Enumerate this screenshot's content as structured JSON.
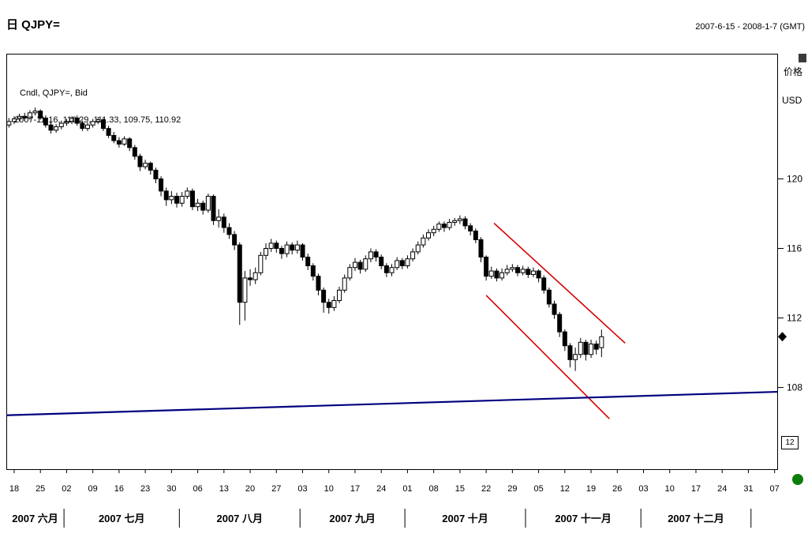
{
  "header": {
    "title": "日 QJPY=",
    "range": "2007-6-15 - 2008-1-7 (GMT)"
  },
  "legend": {
    "line1": "Cndl, QJPY=, Bid",
    "line2": "2007-11-16, 110.29, 111.33, 109.75, 110.92"
  },
  "side": {
    "axis_title": "价格",
    "currency": "USD",
    "interval_box": "12"
  },
  "chart_data": {
    "type": "candlestick",
    "instrument": "QJPY=",
    "period": "Daily",
    "quote_side": "Bid",
    "date_range": "2007-6-15 - 2008-1-7 (GMT)",
    "grid": false,
    "legend_position": "top-left-overlay",
    "y_axis": {
      "title": "价格",
      "currency": "USD",
      "min": 103.3,
      "max": 127.2,
      "ticks": [
        120,
        116,
        112,
        108
      ],
      "side": "right"
    },
    "x_axis": {
      "total_slots": 147,
      "start_date": "2007-06-15",
      "tick_labels": [
        "18",
        "25",
        "02",
        "09",
        "16",
        "23",
        "30",
        "06",
        "13",
        "20",
        "27",
        "03",
        "10",
        "17",
        "24",
        "01",
        "08",
        "15",
        "22",
        "29",
        "05",
        "12",
        "19",
        "26",
        "03",
        "10",
        "17",
        "24",
        "31",
        "07"
      ],
      "tick_slots": [
        1,
        6,
        11,
        16,
        21,
        26,
        31,
        36,
        41,
        46,
        51,
        56,
        61,
        66,
        71,
        76,
        81,
        86,
        91,
        96,
        101,
        106,
        111,
        116,
        121,
        126,
        131,
        136,
        141,
        146
      ]
    },
    "months": [
      {
        "label": "2007 六月",
        "b0": 0,
        "b1": 11
      },
      {
        "label": "2007 七月",
        "b0": 11,
        "b1": 33
      },
      {
        "label": "2007 八月",
        "b0": 33,
        "b1": 56
      },
      {
        "label": "2007 九月",
        "b0": 56,
        "b1": 76
      },
      {
        "label": "2007 十月",
        "b0": 76,
        "b1": 99
      },
      {
        "label": "2007 十一月",
        "b0": 99,
        "b1": 121
      },
      {
        "label": "2007 十二月",
        "b0": 121,
        "b1": 142
      }
    ],
    "candles": [
      [
        123.1,
        123.5,
        122.95,
        123.3
      ],
      [
        123.3,
        123.6,
        123.15,
        123.45
      ],
      [
        123.45,
        123.75,
        123.3,
        123.6
      ],
      [
        123.6,
        123.8,
        123.35,
        123.5
      ],
      [
        123.5,
        123.95,
        123.4,
        123.8
      ],
      [
        123.8,
        124.1,
        123.65,
        123.9
      ],
      [
        123.9,
        124.0,
        123.4,
        123.5
      ],
      [
        123.5,
        123.65,
        122.95,
        123.1
      ],
      [
        123.1,
        123.25,
        122.6,
        122.8
      ],
      [
        122.8,
        123.15,
        122.65,
        123.0
      ],
      [
        123.0,
        123.35,
        122.85,
        123.2
      ],
      [
        123.2,
        123.45,
        123.05,
        123.3
      ],
      [
        123.3,
        123.6,
        123.15,
        123.5
      ],
      [
        123.5,
        123.65,
        123.05,
        123.2
      ],
      [
        123.2,
        123.35,
        122.75,
        122.9
      ],
      [
        122.9,
        123.25,
        122.75,
        123.1
      ],
      [
        123.1,
        123.45,
        122.95,
        123.3
      ],
      [
        123.3,
        123.55,
        123.15,
        123.4
      ],
      [
        123.4,
        123.5,
        122.75,
        122.9
      ],
      [
        122.9,
        123.05,
        122.35,
        122.5
      ],
      [
        122.5,
        122.7,
        122.05,
        122.2
      ],
      [
        122.2,
        122.4,
        121.8,
        122.0
      ],
      [
        122.0,
        122.45,
        121.9,
        122.3
      ],
      [
        122.3,
        122.4,
        121.6,
        121.8
      ],
      [
        121.8,
        121.95,
        121.1,
        121.3
      ],
      [
        121.3,
        121.45,
        120.45,
        120.7
      ],
      [
        120.7,
        121.1,
        120.55,
        120.9
      ],
      [
        120.9,
        121.0,
        120.25,
        120.5
      ],
      [
        120.5,
        120.65,
        119.75,
        120.0
      ],
      [
        120.0,
        120.15,
        119.0,
        119.3
      ],
      [
        119.3,
        119.5,
        118.45,
        118.8
      ],
      [
        118.8,
        119.3,
        118.55,
        119.0
      ],
      [
        119.0,
        119.2,
        118.35,
        118.6
      ],
      [
        118.6,
        119.25,
        118.4,
        119.0
      ],
      [
        119.0,
        119.5,
        118.85,
        119.3
      ],
      [
        119.3,
        119.45,
        118.2,
        118.4
      ],
      [
        118.4,
        118.85,
        118.15,
        118.6
      ],
      [
        118.6,
        118.75,
        117.95,
        118.2
      ],
      [
        118.2,
        119.15,
        118.05,
        119.0
      ],
      [
        119.0,
        119.1,
        117.35,
        117.6
      ],
      [
        117.6,
        118.25,
        117.2,
        117.8
      ],
      [
        117.8,
        118.0,
        116.9,
        117.2
      ],
      [
        117.2,
        117.45,
        116.55,
        116.8
      ],
      [
        116.8,
        117.0,
        115.9,
        116.2
      ],
      [
        116.2,
        116.35,
        111.6,
        112.9
      ],
      [
        112.9,
        114.7,
        111.85,
        114.3
      ],
      [
        114.3,
        114.8,
        113.85,
        114.2
      ],
      [
        114.2,
        114.9,
        113.95,
        114.6
      ],
      [
        114.6,
        115.8,
        114.45,
        115.6
      ],
      [
        115.6,
        116.3,
        115.35,
        116.0
      ],
      [
        116.0,
        116.55,
        115.8,
        116.3
      ],
      [
        116.3,
        116.45,
        115.75,
        116.0
      ],
      [
        116.0,
        116.15,
        115.4,
        115.7
      ],
      [
        115.7,
        116.4,
        115.5,
        116.2
      ],
      [
        116.2,
        116.35,
        115.65,
        115.9
      ],
      [
        115.9,
        116.45,
        115.7,
        116.2
      ],
      [
        116.2,
        116.3,
        115.3,
        115.5
      ],
      [
        115.5,
        115.7,
        114.75,
        115.0
      ],
      [
        115.0,
        115.15,
        114.15,
        114.4
      ],
      [
        114.4,
        114.55,
        113.3,
        113.6
      ],
      [
        113.6,
        113.75,
        112.3,
        112.9
      ],
      [
        112.9,
        113.1,
        112.25,
        112.6
      ],
      [
        112.6,
        113.25,
        112.4,
        113.0
      ],
      [
        113.0,
        113.8,
        112.85,
        113.6
      ],
      [
        113.6,
        114.5,
        113.45,
        114.3
      ],
      [
        114.3,
        115.1,
        114.15,
        114.9
      ],
      [
        114.9,
        115.45,
        114.7,
        115.2
      ],
      [
        115.2,
        115.35,
        114.55,
        114.8
      ],
      [
        114.8,
        115.6,
        114.65,
        115.4
      ],
      [
        115.4,
        116.0,
        115.2,
        115.8
      ],
      [
        115.8,
        115.95,
        115.25,
        115.5
      ],
      [
        115.5,
        115.65,
        114.8,
        115.0
      ],
      [
        115.0,
        115.15,
        114.35,
        114.6
      ],
      [
        114.6,
        115.1,
        114.4,
        114.9
      ],
      [
        114.9,
        115.5,
        114.75,
        115.3
      ],
      [
        115.3,
        115.45,
        114.8,
        115.0
      ],
      [
        115.0,
        115.6,
        114.85,
        115.4
      ],
      [
        115.4,
        116.0,
        115.25,
        115.8
      ],
      [
        115.8,
        116.4,
        115.65,
        116.2
      ],
      [
        116.2,
        116.8,
        116.05,
        116.6
      ],
      [
        116.6,
        117.1,
        116.45,
        116.9
      ],
      [
        116.9,
        117.3,
        116.7,
        117.1
      ],
      [
        117.1,
        117.55,
        116.95,
        117.4
      ],
      [
        117.4,
        117.55,
        116.95,
        117.2
      ],
      [
        117.2,
        117.7,
        117.05,
        117.5
      ],
      [
        117.5,
        117.75,
        117.3,
        117.6
      ],
      [
        117.6,
        117.9,
        117.4,
        117.7
      ],
      [
        117.7,
        117.85,
        117.1,
        117.3
      ],
      [
        117.3,
        117.45,
        116.75,
        117.0
      ],
      [
        117.0,
        117.15,
        116.3,
        116.5
      ],
      [
        116.5,
        116.65,
        115.2,
        115.5
      ],
      [
        115.5,
        115.6,
        114.15,
        114.4
      ],
      [
        114.4,
        114.95,
        114.25,
        114.7
      ],
      [
        114.7,
        114.85,
        114.1,
        114.3
      ],
      [
        114.3,
        114.85,
        114.15,
        114.6
      ],
      [
        114.6,
        115.05,
        114.45,
        114.8
      ],
      [
        114.8,
        115.1,
        114.65,
        114.9
      ],
      [
        114.9,
        115.05,
        114.4,
        114.6
      ],
      [
        114.6,
        115.0,
        114.45,
        114.8
      ],
      [
        114.8,
        114.95,
        114.3,
        114.5
      ],
      [
        114.5,
        114.9,
        114.35,
        114.7
      ],
      [
        114.7,
        114.8,
        114.05,
        114.3
      ],
      [
        114.3,
        114.45,
        113.4,
        113.6
      ],
      [
        113.6,
        113.75,
        112.6,
        112.8
      ],
      [
        112.8,
        113.0,
        111.95,
        112.2
      ],
      [
        112.2,
        112.35,
        110.9,
        111.2
      ],
      [
        111.2,
        111.35,
        110.1,
        110.4
      ],
      [
        110.4,
        110.55,
        109.15,
        109.6
      ],
      [
        109.6,
        110.3,
        108.95,
        109.9
      ],
      [
        109.9,
        110.85,
        109.7,
        110.6
      ],
      [
        110.6,
        110.75,
        109.55,
        109.9
      ],
      [
        109.9,
        110.75,
        109.7,
        110.5
      ],
      [
        110.5,
        110.7,
        109.9,
        110.2
      ],
      [
        110.29,
        111.33,
        109.75,
        110.92
      ]
    ],
    "trendlines": [
      {
        "name": "channel-upper-line",
        "color": "#d40000",
        "x1_slot": 92.5,
        "price1": 117.45,
        "x2_slot": 117.5,
        "price2": 110.55,
        "width": 1.6
      },
      {
        "name": "channel-lower-line",
        "color": "#d40000",
        "x1_slot": 91.0,
        "price1": 113.3,
        "x2_slot": 114.5,
        "price2": 106.2,
        "width": 1.6
      },
      {
        "name": "long-term-trendline",
        "color": "#00007f",
        "x1_slot": -0.5,
        "price1": 106.4,
        "x2_slot": 146.5,
        "price2": 107.75,
        "width": 2.2
      }
    ],
    "last_price_marker": 110.92
  }
}
